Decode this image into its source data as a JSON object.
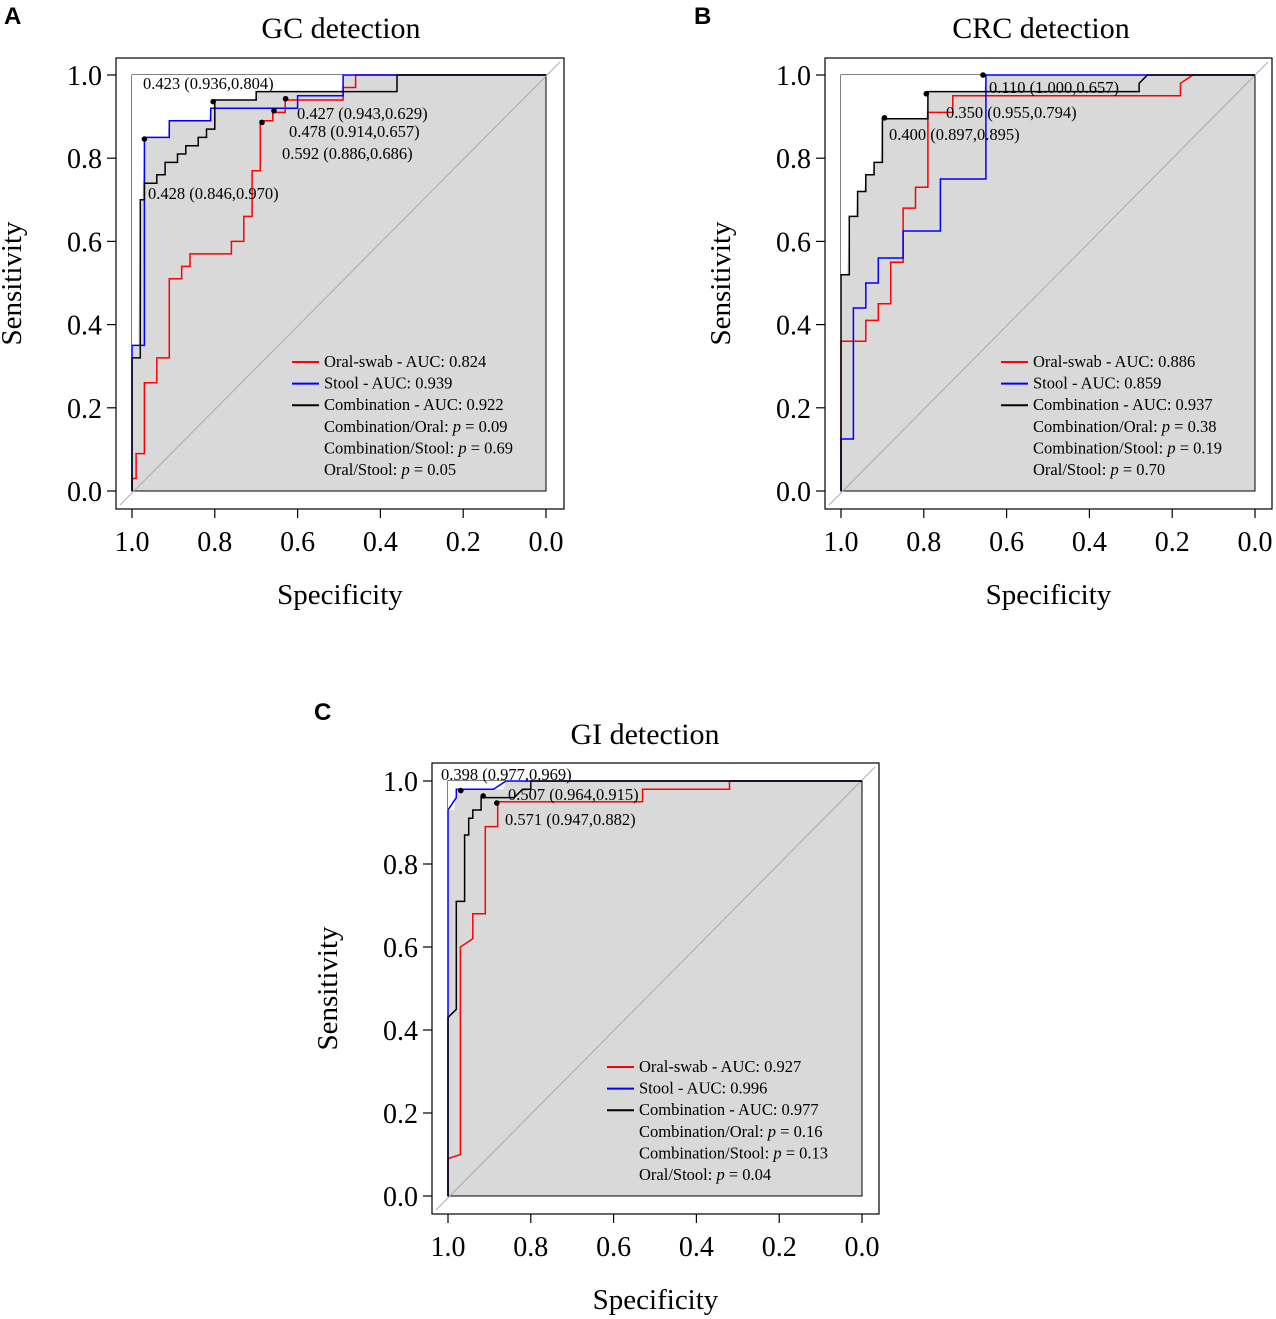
{
  "chart_data": [
    {
      "panel": "A",
      "type": "line",
      "title": "GC detection",
      "xlabel": "Specificity",
      "ylabel": "Sensitivity",
      "xlim": [
        1.0,
        0.0
      ],
      "ylim": [
        0.0,
        1.0
      ],
      "xticks": [
        "1.0",
        "0.8",
        "0.6",
        "0.4",
        "0.2",
        "0.0"
      ],
      "yticks": [
        "0.0",
        "0.2",
        "0.4",
        "0.6",
        "0.8",
        "1.0"
      ],
      "series": [
        {
          "name": "Oral-swab",
          "color": "#ff0000",
          "points": [
            [
              1.0,
              0.0
            ],
            [
              1.0,
              0.03
            ],
            [
              0.99,
              0.03
            ],
            [
              0.99,
              0.09
            ],
            [
              0.97,
              0.09
            ],
            [
              0.97,
              0.26
            ],
            [
              0.94,
              0.26
            ],
            [
              0.94,
              0.32
            ],
            [
              0.91,
              0.32
            ],
            [
              0.91,
              0.51
            ],
            [
              0.88,
              0.51
            ],
            [
              0.88,
              0.54
            ],
            [
              0.86,
              0.54
            ],
            [
              0.86,
              0.57
            ],
            [
              0.76,
              0.57
            ],
            [
              0.76,
              0.6
            ],
            [
              0.73,
              0.6
            ],
            [
              0.73,
              0.66
            ],
            [
              0.71,
              0.66
            ],
            [
              0.71,
              0.77
            ],
            [
              0.69,
              0.77
            ],
            [
              0.69,
              0.89
            ],
            [
              0.66,
              0.89
            ],
            [
              0.66,
              0.91
            ],
            [
              0.63,
              0.91
            ],
            [
              0.63,
              0.94
            ],
            [
              0.49,
              0.94
            ],
            [
              0.49,
              0.97
            ],
            [
              0.46,
              0.97
            ],
            [
              0.46,
              1.0
            ],
            [
              0.0,
              1.0
            ]
          ]
        },
        {
          "name": "Stool",
          "color": "#0000ff",
          "points": [
            [
              1.0,
              0.0
            ],
            [
              1.0,
              0.35
            ],
            [
              0.97,
              0.35
            ],
            [
              0.97,
              0.85
            ],
            [
              0.91,
              0.85
            ],
            [
              0.91,
              0.89
            ],
            [
              0.81,
              0.89
            ],
            [
              0.81,
              0.92
            ],
            [
              0.6,
              0.92
            ],
            [
              0.6,
              0.95
            ],
            [
              0.49,
              0.95
            ],
            [
              0.49,
              1.0
            ],
            [
              0.0,
              1.0
            ]
          ]
        },
        {
          "name": "Combination",
          "color": "#000000",
          "points": [
            [
              1.0,
              0.0
            ],
            [
              1.0,
              0.32
            ],
            [
              0.98,
              0.32
            ],
            [
              0.98,
              0.7
            ],
            [
              0.97,
              0.7
            ],
            [
              0.97,
              0.74
            ],
            [
              0.94,
              0.74
            ],
            [
              0.94,
              0.76
            ],
            [
              0.92,
              0.76
            ],
            [
              0.92,
              0.79
            ],
            [
              0.89,
              0.79
            ],
            [
              0.89,
              0.81
            ],
            [
              0.87,
              0.81
            ],
            [
              0.87,
              0.83
            ],
            [
              0.84,
              0.83
            ],
            [
              0.84,
              0.85
            ],
            [
              0.82,
              0.85
            ],
            [
              0.82,
              0.87
            ],
            [
              0.8,
              0.87
            ],
            [
              0.8,
              0.94
            ],
            [
              0.7,
              0.94
            ],
            [
              0.7,
              0.96
            ],
            [
              0.36,
              0.96
            ],
            [
              0.36,
              1.0
            ],
            [
              0.0,
              1.0
            ]
          ]
        }
      ],
      "thresholds": [
        {
          "x": 0.97,
          "y": 0.846,
          "label": "0.428 (0.846,0.970)"
        },
        {
          "x": 0.804,
          "y": 0.936,
          "label": "0.423 (0.936,0.804)"
        },
        {
          "x": 0.629,
          "y": 0.943,
          "label": "0.427 (0.943,0.629)"
        },
        {
          "x": 0.657,
          "y": 0.914,
          "label": "0.478 (0.914,0.657)"
        },
        {
          "x": 0.686,
          "y": 0.886,
          "label": "0.592 (0.886,0.686)"
        }
      ],
      "legend": [
        {
          "label": "Oral-swab - AUC: 0.824",
          "color": "#ff0000"
        },
        {
          "label": "Stool - AUC: 0.939",
          "color": "#0000ff"
        },
        {
          "label": "Combination - AUC: 0.922",
          "color": "#000000"
        },
        {
          "label": "Combination/Oral: ",
          "p": "p",
          "value": " = 0.09"
        },
        {
          "label": "Combination/Stool: ",
          "p": "p",
          "value": " = 0.69"
        },
        {
          "label": "Oral/Stool: ",
          "p": "p",
          "value": " = 0.05"
        }
      ]
    },
    {
      "panel": "B",
      "type": "line",
      "title": "CRC detection",
      "xlabel": "Specificity",
      "ylabel": "Sensitivity",
      "xlim": [
        1.0,
        0.0
      ],
      "ylim": [
        0.0,
        1.0
      ],
      "xticks": [
        "1.0",
        "0.8",
        "0.6",
        "0.4",
        "0.2",
        "0.0"
      ],
      "yticks": [
        "0.0",
        "0.2",
        "0.4",
        "0.6",
        "0.8",
        "1.0"
      ],
      "series": [
        {
          "name": "Oral-swab",
          "color": "#ff0000",
          "points": [
            [
              1.0,
              0.0
            ],
            [
              1.0,
              0.36
            ],
            [
              0.94,
              0.36
            ],
            [
              0.94,
              0.41
            ],
            [
              0.91,
              0.41
            ],
            [
              0.91,
              0.45
            ],
            [
              0.88,
              0.45
            ],
            [
              0.88,
              0.55
            ],
            [
              0.85,
              0.55
            ],
            [
              0.85,
              0.68
            ],
            [
              0.82,
              0.68
            ],
            [
              0.82,
              0.73
            ],
            [
              0.79,
              0.73
            ],
            [
              0.79,
              0.91
            ],
            [
              0.73,
              0.91
            ],
            [
              0.73,
              0.95
            ],
            [
              0.18,
              0.95
            ],
            [
              0.18,
              0.98
            ],
            [
              0.15,
              1.0
            ],
            [
              0.0,
              1.0
            ]
          ]
        },
        {
          "name": "Stool",
          "color": "#0000ff",
          "points": [
            [
              1.0,
              0.0
            ],
            [
              1.0,
              0.125
            ],
            [
              0.97,
              0.125
            ],
            [
              0.97,
              0.44
            ],
            [
              0.94,
              0.44
            ],
            [
              0.94,
              0.5
            ],
            [
              0.91,
              0.5
            ],
            [
              0.91,
              0.56
            ],
            [
              0.85,
              0.56
            ],
            [
              0.85,
              0.625
            ],
            [
              0.76,
              0.625
            ],
            [
              0.76,
              0.75
            ],
            [
              0.65,
              0.75
            ],
            [
              0.65,
              1.0
            ],
            [
              0.0,
              1.0
            ]
          ]
        },
        {
          "name": "Combination",
          "color": "#000000",
          "points": [
            [
              1.0,
              0.0
            ],
            [
              1.0,
              0.52
            ],
            [
              0.98,
              0.52
            ],
            [
              0.98,
              0.66
            ],
            [
              0.96,
              0.66
            ],
            [
              0.96,
              0.72
            ],
            [
              0.94,
              0.72
            ],
            [
              0.94,
              0.76
            ],
            [
              0.92,
              0.76
            ],
            [
              0.92,
              0.79
            ],
            [
              0.9,
              0.79
            ],
            [
              0.9,
              0.895
            ],
            [
              0.79,
              0.895
            ],
            [
              0.79,
              0.96
            ],
            [
              0.28,
              0.96
            ],
            [
              0.28,
              0.98
            ],
            [
              0.26,
              1.0
            ],
            [
              0.0,
              1.0
            ]
          ]
        }
      ],
      "thresholds": [
        {
          "x": 0.657,
          "y": 1.0,
          "label": "0.110 (1.000,0.657)"
        },
        {
          "x": 0.794,
          "y": 0.955,
          "label": "0.350 (0.955,0.794)"
        },
        {
          "x": 0.895,
          "y": 0.897,
          "label": "0.400 (0.897,0.895)"
        }
      ],
      "legend": [
        {
          "label": "Oral-swab - AUC: 0.886",
          "color": "#ff0000"
        },
        {
          "label": "Stool - AUC: 0.859",
          "color": "#0000ff"
        },
        {
          "label": "Combination - AUC: 0.937",
          "color": "#000000"
        },
        {
          "label": "Combination/Oral: ",
          "p": "p",
          "value": " = 0.38"
        },
        {
          "label": "Combination/Stool: ",
          "p": "p",
          "value": " = 0.19"
        },
        {
          "label": "Oral/Stool: ",
          "p": "p",
          "value": " = 0.70"
        }
      ]
    },
    {
      "panel": "C",
      "type": "line",
      "title": "GI detection",
      "xlabel": "Specificity",
      "ylabel": "Sensitivity",
      "xlim": [
        1.0,
        0.0
      ],
      "ylim": [
        0.0,
        1.0
      ],
      "xticks": [
        "1.0",
        "0.8",
        "0.6",
        "0.4",
        "0.2",
        "0.0"
      ],
      "yticks": [
        "0.0",
        "0.2",
        "0.4",
        "0.6",
        "0.8",
        "1.0"
      ],
      "series": [
        {
          "name": "Oral-swab",
          "color": "#ff0000",
          "points": [
            [
              1.0,
              0.0
            ],
            [
              1.0,
              0.09
            ],
            [
              0.97,
              0.1
            ],
            [
              0.97,
              0.6
            ],
            [
              0.94,
              0.62
            ],
            [
              0.94,
              0.68
            ],
            [
              0.91,
              0.68
            ],
            [
              0.91,
              0.89
            ],
            [
              0.88,
              0.89
            ],
            [
              0.88,
              0.95
            ],
            [
              0.53,
              0.95
            ],
            [
              0.53,
              0.98
            ],
            [
              0.32,
              0.98
            ],
            [
              0.32,
              1.0
            ],
            [
              0.0,
              1.0
            ]
          ]
        },
        {
          "name": "Stool",
          "color": "#0000ff",
          "points": [
            [
              1.0,
              0.0
            ],
            [
              1.0,
              0.93
            ],
            [
              0.98,
              0.96
            ],
            [
              0.98,
              0.98
            ],
            [
              0.89,
              0.98
            ],
            [
              0.86,
              1.0
            ],
            [
              0.0,
              1.0
            ]
          ]
        },
        {
          "name": "Combination",
          "color": "#000000",
          "points": [
            [
              1.0,
              0.0
            ],
            [
              1.0,
              0.43
            ],
            [
              0.98,
              0.45
            ],
            [
              0.98,
              0.71
            ],
            [
              0.96,
              0.71
            ],
            [
              0.96,
              0.87
            ],
            [
              0.95,
              0.87
            ],
            [
              0.95,
              0.91
            ],
            [
              0.94,
              0.91
            ],
            [
              0.94,
              0.93
            ],
            [
              0.92,
              0.93
            ],
            [
              0.92,
              0.96
            ],
            [
              0.84,
              0.96
            ],
            [
              0.82,
              0.98
            ],
            [
              0.8,
              0.98
            ],
            [
              0.8,
              1.0
            ],
            [
              0.0,
              1.0
            ]
          ]
        }
      ],
      "thresholds": [
        {
          "x": 0.969,
          "y": 0.977,
          "label": "0.398 (0.977,0.969)"
        },
        {
          "x": 0.915,
          "y": 0.964,
          "label": "0.507 (0.964,0.915)"
        },
        {
          "x": 0.882,
          "y": 0.947,
          "label": "0.571 (0.947,0.882)"
        }
      ],
      "legend": [
        {
          "label": "Oral-swab - AUC: 0.927",
          "color": "#ff0000"
        },
        {
          "label": "Stool - AUC: 0.996",
          "color": "#0000ff"
        },
        {
          "label": "Combination - AUC: 0.977",
          "color": "#000000"
        },
        {
          "label": "Combination/Oral: ",
          "p": "p",
          "value": " = 0.16"
        },
        {
          "label": "Combination/Stool: ",
          "p": "p",
          "value": " = 0.13"
        },
        {
          "label": "Oral/Stool: ",
          "p": "p",
          "value": " = 0.04"
        }
      ]
    }
  ]
}
